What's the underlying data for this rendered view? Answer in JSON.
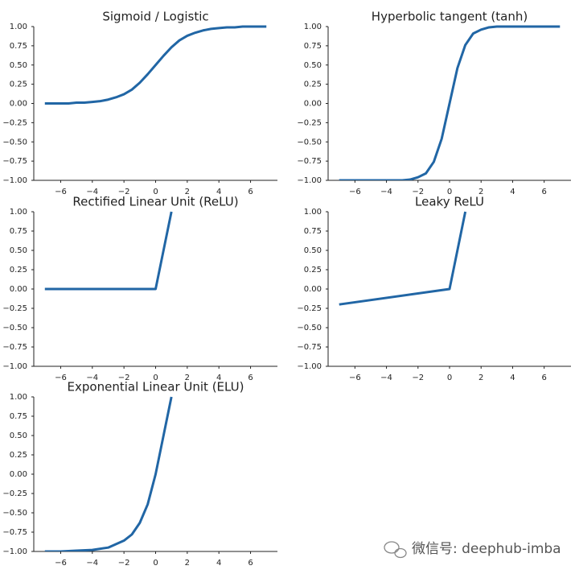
{
  "chart_data": [
    {
      "type": "line",
      "title": "Sigmoid / Logistic",
      "color": "#2166a5",
      "x": [
        -7,
        -6.5,
        -6,
        -5.5,
        -5,
        -4.5,
        -4,
        -3.5,
        -3,
        -2.5,
        -2,
        -1.5,
        -1,
        -0.5,
        0,
        0.5,
        1,
        1.5,
        2,
        2.5,
        3,
        3.5,
        4,
        4.5,
        5,
        5.5,
        6,
        6.5,
        7
      ],
      "values": [
        0,
        0,
        0,
        0,
        0.01,
        0.01,
        0.02,
        0.03,
        0.05,
        0.08,
        0.12,
        0.18,
        0.27,
        0.38,
        0.5,
        0.62,
        0.73,
        0.82,
        0.88,
        0.92,
        0.95,
        0.97,
        0.98,
        0.99,
        0.99,
        1,
        1,
        1,
        1
      ],
      "xlim": [
        -7.7,
        7.7
      ],
      "ylim": [
        -1,
        1
      ],
      "xticks": [
        {
          "value": -6,
          "label": "−6"
        },
        {
          "value": -4,
          "label": "−4"
        },
        {
          "value": -2,
          "label": "−2"
        },
        0,
        2,
        4,
        6
      ],
      "yticks": [
        {
          "value": -1,
          "label": "−1.00"
        },
        {
          "value": -0.75,
          "label": "−0.75"
        },
        {
          "value": -0.5,
          "label": "−0.50"
        },
        {
          "value": -0.25,
          "label": "−0.25"
        },
        {
          "value": 0,
          "label": "0.00"
        },
        {
          "value": 0.25,
          "label": "0.25"
        },
        {
          "value": 0.5,
          "label": "0.50"
        },
        {
          "value": 0.75,
          "label": "0.75"
        },
        {
          "value": 1,
          "label": "1.00"
        }
      ]
    },
    {
      "type": "line",
      "title": "Hyperbolic tangent (tanh)",
      "color": "#2166a5",
      "x": [
        -7,
        -6.5,
        -6,
        -5.5,
        -5,
        -4.5,
        -4,
        -3.5,
        -3,
        -2.5,
        -2,
        -1.5,
        -1,
        -0.5,
        0,
        0.5,
        1,
        1.5,
        2,
        2.5,
        3,
        3.5,
        4,
        4.5,
        5,
        5.5,
        6,
        6.5,
        7
      ],
      "values": [
        -1,
        -1,
        -1,
        -1,
        -1,
        -1,
        -1,
        -1,
        -1,
        -0.99,
        -0.96,
        -0.91,
        -0.76,
        -0.46,
        0,
        0.46,
        0.76,
        0.91,
        0.96,
        0.99,
        1,
        1,
        1,
        1,
        1,
        1,
        1,
        1,
        1
      ],
      "xlim": [
        -7.7,
        7.7
      ],
      "ylim": [
        -1,
        1
      ],
      "xticks": [
        {
          "value": -6,
          "label": "−6"
        },
        {
          "value": -4,
          "label": "−4"
        },
        {
          "value": -2,
          "label": "−2"
        },
        0,
        2,
        4,
        6
      ],
      "yticks": [
        {
          "value": -1,
          "label": "−1.00"
        },
        {
          "value": -0.75,
          "label": "−0.75"
        },
        {
          "value": -0.5,
          "label": "−0.50"
        },
        {
          "value": -0.25,
          "label": "−0.25"
        },
        {
          "value": 0,
          "label": "0.00"
        },
        {
          "value": 0.25,
          "label": "0.25"
        },
        {
          "value": 0.5,
          "label": "0.50"
        },
        {
          "value": 0.75,
          "label": "0.75"
        },
        {
          "value": 1,
          "label": "1.00"
        }
      ]
    },
    {
      "type": "line",
      "title": "Rectified Linear Unit (ReLU)",
      "color": "#2166a5",
      "x": [
        -7,
        0,
        1
      ],
      "values": [
        0,
        0,
        1
      ],
      "xlim": [
        -7.7,
        7.7
      ],
      "ylim": [
        -1,
        1
      ],
      "xticks": [
        {
          "value": -6,
          "label": "−6"
        },
        {
          "value": -4,
          "label": "−4"
        },
        {
          "value": -2,
          "label": "−2"
        },
        0,
        2,
        4,
        6
      ],
      "yticks": [
        {
          "value": -1,
          "label": "−1.00"
        },
        {
          "value": -0.75,
          "label": "−0.75"
        },
        {
          "value": -0.5,
          "label": "−0.50"
        },
        {
          "value": -0.25,
          "label": "−0.25"
        },
        {
          "value": 0,
          "label": "0.00"
        },
        {
          "value": 0.25,
          "label": "0.25"
        },
        {
          "value": 0.5,
          "label": "0.50"
        },
        {
          "value": 0.75,
          "label": "0.75"
        },
        {
          "value": 1,
          "label": "1.00"
        }
      ]
    },
    {
      "type": "line",
      "title": "Leaky ReLU",
      "color": "#2166a5",
      "x": [
        -7,
        0,
        1
      ],
      "values": [
        -0.2,
        0,
        1
      ],
      "xlim": [
        -7.7,
        7.7
      ],
      "ylim": [
        -1,
        1
      ],
      "xticks": [
        {
          "value": -6,
          "label": "−6"
        },
        {
          "value": -4,
          "label": "−4"
        },
        {
          "value": -2,
          "label": "−2"
        },
        0,
        2,
        4,
        6
      ],
      "yticks": [
        {
          "value": -1,
          "label": "−1.00"
        },
        {
          "value": -0.75,
          "label": "−0.75"
        },
        {
          "value": -0.5,
          "label": "−0.50"
        },
        {
          "value": -0.25,
          "label": "−0.25"
        },
        {
          "value": 0,
          "label": "0.00"
        },
        {
          "value": 0.25,
          "label": "0.25"
        },
        {
          "value": 0.5,
          "label": "0.50"
        },
        {
          "value": 0.75,
          "label": "0.75"
        },
        {
          "value": 1,
          "label": "1.00"
        }
      ]
    },
    {
      "type": "line",
      "title": "Exponential Linear Unit (ELU)",
      "color": "#2166a5",
      "x": [
        -7,
        -6,
        -5,
        -4,
        -3,
        -2,
        -1.5,
        -1,
        -0.5,
        0,
        0.5,
        1
      ],
      "values": [
        -1,
        -1,
        -0.99,
        -0.98,
        -0.95,
        -0.86,
        -0.78,
        -0.63,
        -0.39,
        0,
        0.5,
        1
      ],
      "xlim": [
        -7.7,
        7.7
      ],
      "ylim": [
        -1,
        1
      ],
      "xticks": [
        {
          "value": -6,
          "label": "−6"
        },
        {
          "value": -4,
          "label": "−4"
        },
        {
          "value": -2,
          "label": "−2"
        },
        0,
        2,
        4,
        6
      ],
      "yticks": [
        {
          "value": -1,
          "label": "−1.00"
        },
        {
          "value": -0.75,
          "label": "−0.75"
        },
        {
          "value": -0.5,
          "label": "−0.50"
        },
        {
          "value": -0.25,
          "label": "−0.25"
        },
        {
          "value": 0,
          "label": "0.00"
        },
        {
          "value": 0.25,
          "label": "0.25"
        },
        {
          "value": 0.5,
          "label": "0.50"
        },
        {
          "value": 0.75,
          "label": "0.75"
        },
        {
          "value": 1,
          "label": "1.00"
        }
      ]
    }
  ],
  "watermark": "微信号: deephub-imba"
}
